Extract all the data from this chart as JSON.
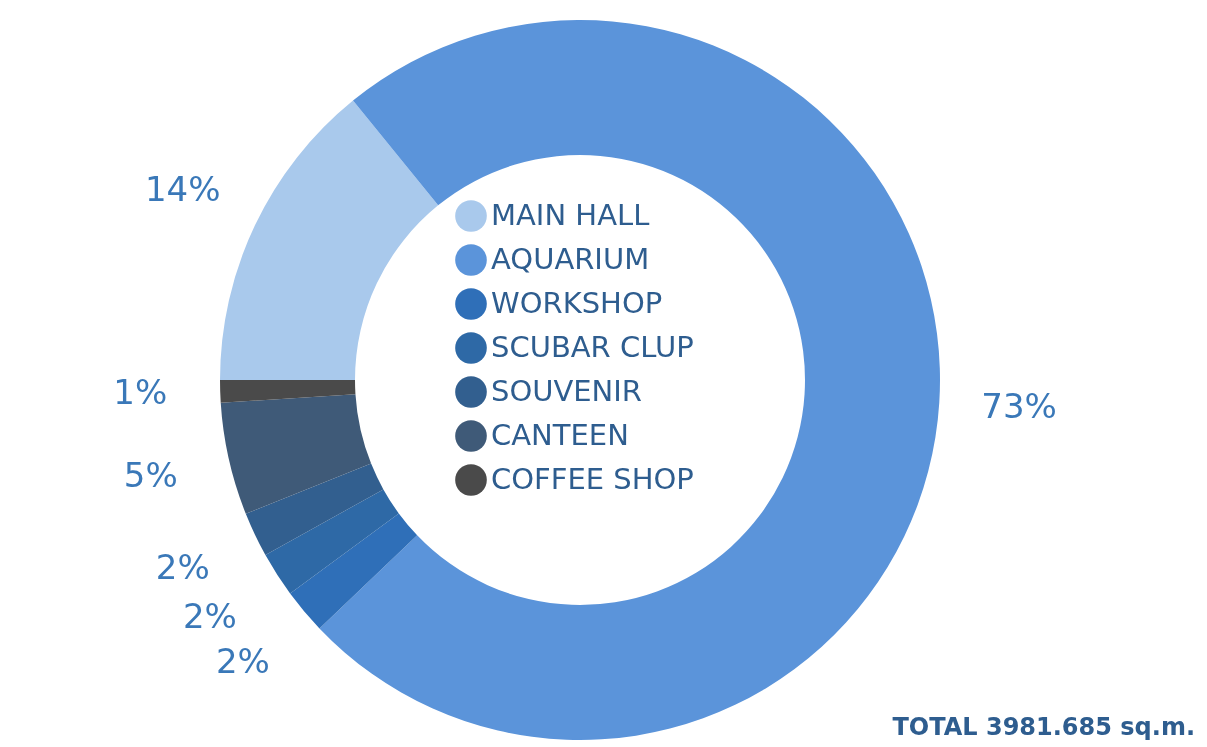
{
  "chart_data": {
    "type": "donut",
    "categories": [
      "MAIN HALL",
      "AQUARIUM",
      "WORKSHOP",
      "SCUBAR CLUP",
      "SOUVENIR",
      "CANTEEN",
      "COFFEE SHOP"
    ],
    "values": [
      14,
      73,
      2,
      2,
      2,
      5,
      1
    ],
    "colors": [
      "#a9c9ec",
      "#5b94da",
      "#2f6fb8",
      "#2e69a6",
      "#325f8f",
      "#3f5a78",
      "#4a4a4a"
    ],
    "data_labels": true,
    "value_labels": [
      "14%",
      "73%",
      "2%",
      "2%",
      "2%",
      "5%",
      "1%"
    ],
    "legend": "center",
    "annotations": [
      "TOTAL 3981.685 sq.m."
    ]
  }
}
